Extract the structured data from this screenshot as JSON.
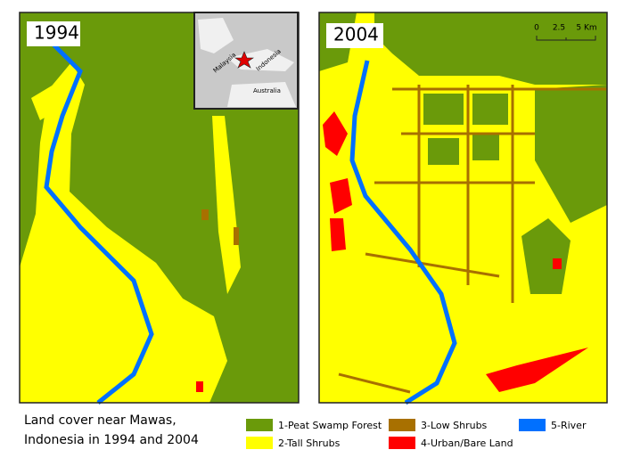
{
  "panels": [
    {
      "year": "1994"
    },
    {
      "year": "2004"
    }
  ],
  "inset": {
    "labels": [
      "Malaysia",
      "Indonesia",
      "Australia"
    ]
  },
  "scale_bar": {
    "labels": [
      "0",
      "2.5",
      "5 Km"
    ]
  },
  "caption": [
    "Land cover near Mawas,",
    "Indonesia in 1994 and 2004"
  ],
  "legend": [
    {
      "label": "1-Peat Swamp Forest",
      "color": "#6a9a0a"
    },
    {
      "label": "2-Tall Shrubs",
      "color": "#ffff00"
    },
    {
      "label": "3-Low Shrubs",
      "color": "#a87000"
    },
    {
      "label": "4-Urban/Bare Land",
      "color": "#ff0000"
    },
    {
      "label": "5-River",
      "color": "#0070ff"
    }
  ]
}
